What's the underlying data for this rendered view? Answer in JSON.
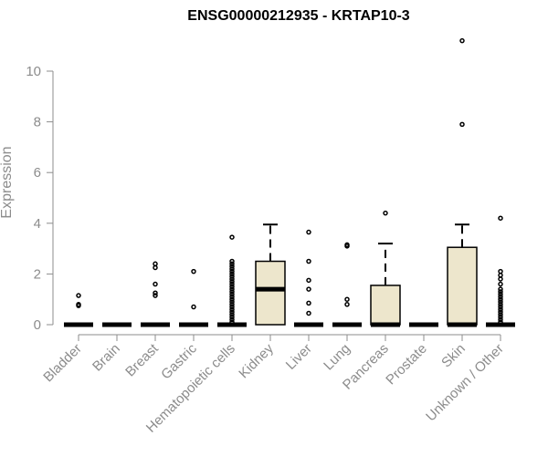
{
  "chart_data": {
    "type": "box",
    "title": "ENSG00000212935 - KRTAP10-3",
    "xlabel": "",
    "ylabel": "Expression",
    "ylim": [
      0,
      10.5
    ],
    "yticks": [
      "0",
      "2",
      "4",
      "6",
      "8",
      "10"
    ],
    "box_fill": "#ede6cc",
    "categories": [
      "Bladder",
      "Brain",
      "Breast",
      "Gastric",
      "Hematopoietic cells",
      "Kidney",
      "Liver",
      "Lung",
      "Pancreas",
      "Prostate",
      "Skin",
      "Unknown / Other"
    ],
    "boxes": [
      {
        "q1": 0,
        "median": 0,
        "q3": 0,
        "whisker_low": 0,
        "whisker_high": 0,
        "outliers": [
          0.75,
          0.8,
          1.15
        ]
      },
      {
        "q1": 0,
        "median": 0,
        "q3": 0,
        "whisker_low": 0,
        "whisker_high": 0,
        "outliers": []
      },
      {
        "q1": 0,
        "median": 0,
        "q3": 0,
        "whisker_low": 0,
        "whisker_high": 0,
        "outliers": [
          1.15,
          1.25,
          1.6,
          2.25,
          2.4
        ]
      },
      {
        "q1": 0,
        "median": 0,
        "q3": 0,
        "whisker_low": 0,
        "whisker_high": 0,
        "outliers": [
          0.7,
          2.1
        ]
      },
      {
        "q1": 0,
        "median": 0,
        "q3": 0,
        "whisker_low": 0,
        "whisker_high": 0,
        "outliers": [
          0.1,
          0.2,
          0.3,
          0.4,
          0.5,
          0.6,
          0.7,
          0.8,
          0.9,
          1.0,
          1.1,
          1.2,
          1.3,
          1.4,
          1.5,
          1.6,
          1.7,
          1.8,
          1.9,
          2.0,
          2.1,
          2.2,
          2.3,
          2.4,
          2.5,
          3.45
        ]
      },
      {
        "q1": 0,
        "median": 1.4,
        "q3": 2.5,
        "whisker_low": 0,
        "whisker_high": 3.95,
        "outliers": []
      },
      {
        "q1": 0,
        "median": 0,
        "q3": 0,
        "whisker_low": 0,
        "whisker_high": 0,
        "outliers": [
          0.45,
          0.85,
          1.4,
          1.75,
          2.5,
          3.65
        ]
      },
      {
        "q1": 0,
        "median": 0,
        "q3": 0,
        "whisker_low": 0,
        "whisker_high": 0,
        "outliers": [
          0.8,
          1.0,
          3.1,
          3.15
        ]
      },
      {
        "q1": 0,
        "median": 0,
        "q3": 1.55,
        "whisker_low": 0,
        "whisker_high": 3.2,
        "outliers": [
          4.4
        ]
      },
      {
        "q1": 0,
        "median": 0,
        "q3": 0,
        "whisker_low": 0,
        "whisker_high": 0,
        "outliers": []
      },
      {
        "q1": 0,
        "median": 0,
        "q3": 3.05,
        "whisker_low": 0,
        "whisker_high": 3.95,
        "outliers": [
          7.9,
          11.2
        ]
      },
      {
        "q1": 0,
        "median": 0,
        "q3": 0,
        "whisker_low": 0,
        "whisker_high": 0,
        "outliers": [
          0.1,
          0.2,
          0.3,
          0.4,
          0.5,
          0.6,
          0.7,
          0.8,
          0.9,
          1.0,
          1.1,
          1.2,
          1.3,
          1.4,
          1.6,
          1.8,
          1.95,
          2.1,
          4.2
        ]
      }
    ]
  }
}
